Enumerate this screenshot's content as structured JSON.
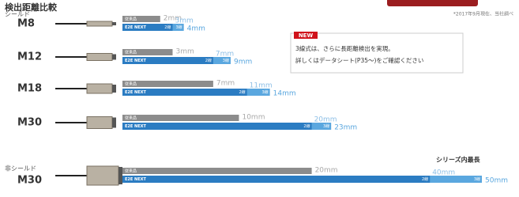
{
  "chart_data": {
    "type": "bar",
    "title": "検出距離比較",
    "note": "*2017年9月現在、当社調べ",
    "groups": [
      "シールド",
      "非シールド"
    ],
    "categories": [
      "M8",
      "M12",
      "M18",
      "M30",
      "M30"
    ],
    "bar_label": "E2E NEXT",
    "series": [
      {
        "name": "従来品",
        "color": "#8c8c8c",
        "values": [
          2,
          3,
          7,
          10,
          20
        ],
        "value_labels": [
          "2mm",
          "3mm",
          "7mm",
          "10mm",
          "20mm"
        ]
      },
      {
        "name": "2線",
        "color": "#2b7cc2",
        "values": [
          3,
          7,
          11,
          20,
          40
        ],
        "value_labels": [
          "3mm",
          "7mm",
          "11mm",
          "20mm",
          "40mm"
        ]
      },
      {
        "name": "3線",
        "color": "#5aa7df",
        "values": [
          4,
          9,
          14,
          23,
          50
        ],
        "value_labels": [
          "4mm",
          "9mm",
          "14mm",
          "23mm",
          "50mm"
        ]
      }
    ],
    "new_box": {
      "tag": "NEW",
      "lines": [
        "3線式は、さらに長距離検出を実現。",
        "詳しくはデータシート(P35〜)をご確認ください"
      ]
    },
    "annotation": "シリーズ内最長"
  }
}
